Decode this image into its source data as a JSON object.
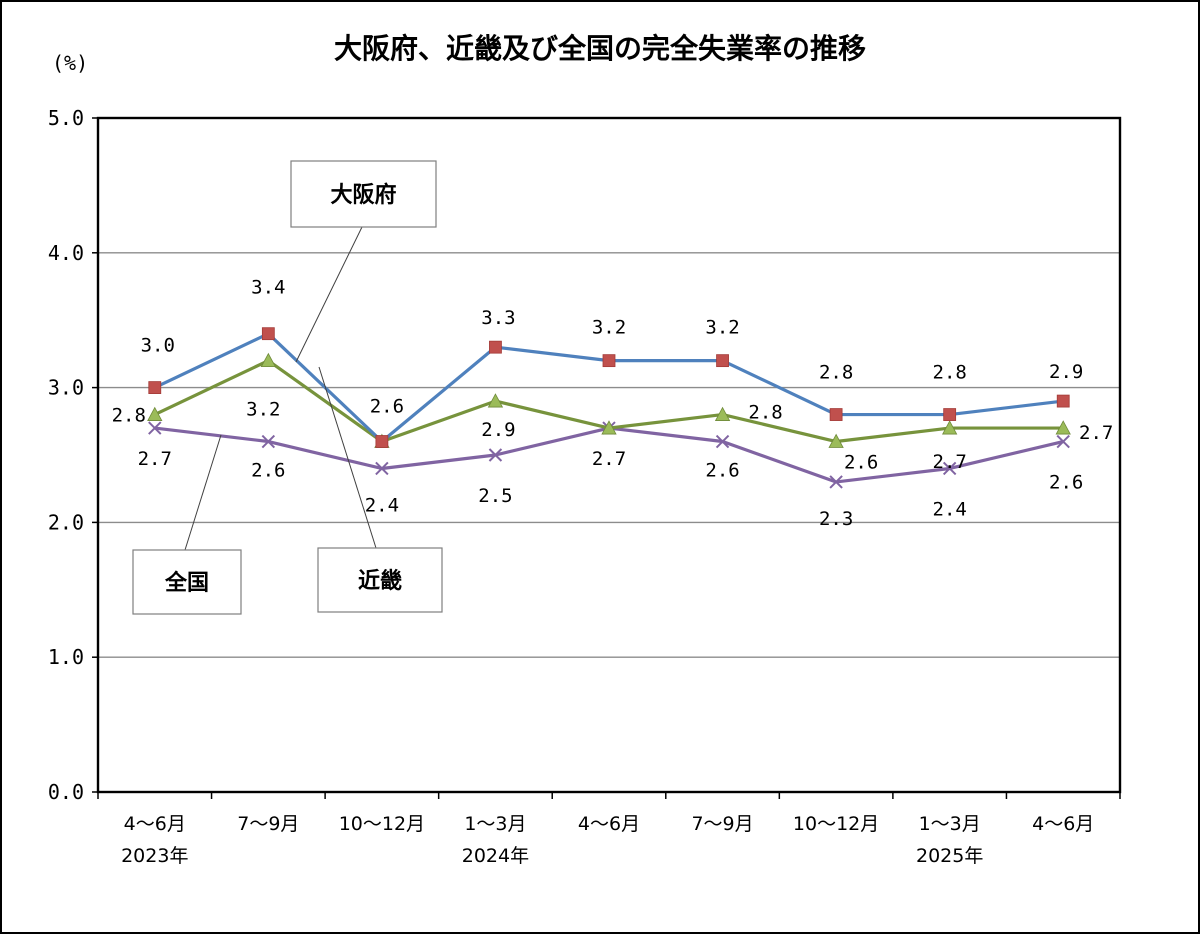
{
  "chart_data": {
    "type": "line",
    "title": "大阪府、近畿及び全国の完全失業率の推移",
    "ylabel": "(%)",
    "xlabel": "",
    "ylim": [
      0,
      5
    ],
    "grid": true,
    "y_ticks": [
      "0.0",
      "1.0",
      "2.0",
      "3.0",
      "4.0",
      "5.0"
    ],
    "categories": [
      "4～6月",
      "7～9月",
      "10～12月",
      "1～3月",
      "4～6月",
      "7～9月",
      "10～12月",
      "1～3月",
      "4～6月"
    ],
    "category_years": [
      "2023年",
      "",
      "",
      "2024年",
      "",
      "",
      "",
      "2025年",
      ""
    ],
    "series": [
      {
        "name": "大阪府",
        "values": [
          3.0,
          3.4,
          2.6,
          3.3,
          3.2,
          3.2,
          2.8,
          2.8,
          2.9
        ],
        "labels": [
          "3.0",
          "3.4",
          "",
          "3.3",
          "3.2",
          "3.2",
          "2.8",
          "2.8",
          "2.9"
        ],
        "color": "#4f81bd",
        "marker": "square",
        "marker_color": "#c0504d"
      },
      {
        "name": "近畿",
        "values": [
          2.8,
          3.2,
          2.6,
          2.9,
          2.7,
          2.8,
          2.6,
          2.7,
          2.7
        ],
        "labels": [
          "2.8",
          "3.2",
          "2.6",
          "2.9",
          "",
          "2.8",
          "2.6",
          "2.7",
          "2.7"
        ],
        "color": "#77933c",
        "marker": "triangle",
        "marker_color": "#9bbb59"
      },
      {
        "name": "全国",
        "values": [
          2.7,
          2.6,
          2.4,
          2.5,
          2.7,
          2.6,
          2.3,
          2.4,
          2.6
        ],
        "labels": [
          "2.7",
          "2.6",
          "2.4",
          "2.5",
          "2.7",
          "2.6",
          "2.3",
          "2.4",
          "2.6"
        ],
        "color": "#8064a2",
        "marker": "x",
        "marker_color": "#8064a2"
      }
    ],
    "callouts": [
      "大阪府",
      "近畿",
      "全国"
    ]
  }
}
